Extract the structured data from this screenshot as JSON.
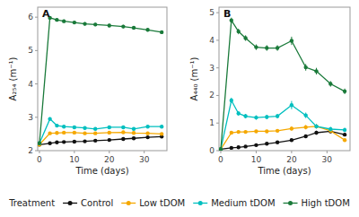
{
  "chart_data": [
    {
      "type": "line",
      "title": "A",
      "x_label": "Time (days)",
      "y_label": "A₂₅₄ (m⁻¹)",
      "legend_title": "Treatment",
      "legend": "bottom",
      "grid": false,
      "marker": "circle",
      "line_style": "solid",
      "xlim": [
        -0.5,
        36.5
      ],
      "xticks": [
        0,
        10,
        20,
        30
      ],
      "ylim": [
        2.0,
        6.3
      ],
      "yticks": [
        2,
        3,
        4,
        5,
        6
      ],
      "x": [
        0,
        3,
        5,
        7,
        10,
        13,
        16,
        20,
        24,
        27,
        31,
        35
      ],
      "series": [
        {
          "name": "Control",
          "color": "#111111",
          "values": [
            2.18,
            2.22,
            2.25,
            2.26,
            2.27,
            2.28,
            2.3,
            2.32,
            2.35,
            2.37,
            2.4,
            2.42
          ],
          "errors": [
            0.0,
            0.02,
            0.02,
            0.02,
            0.02,
            0.02,
            0.02,
            0.02,
            0.02,
            0.02,
            0.02,
            0.02
          ]
        },
        {
          "name": "Low tDOM",
          "color": "#f5a800",
          "values": [
            2.18,
            2.52,
            2.53,
            2.54,
            2.54,
            2.52,
            2.52,
            2.54,
            2.55,
            2.53,
            2.52,
            2.5
          ],
          "errors": [
            0.0,
            0.03,
            0.03,
            0.03,
            0.03,
            0.03,
            0.03,
            0.03,
            0.03,
            0.03,
            0.03,
            0.03
          ]
        },
        {
          "name": "Medium tDOM",
          "color": "#00bfbf",
          "values": [
            2.22,
            2.95,
            2.75,
            2.72,
            2.7,
            2.68,
            2.65,
            2.7,
            2.7,
            2.65,
            2.72,
            2.72
          ],
          "errors": [
            0.0,
            0.05,
            0.04,
            0.04,
            0.04,
            0.04,
            0.04,
            0.04,
            0.04,
            0.04,
            0.04,
            0.04
          ]
        },
        {
          "name": "High tDOM",
          "color": "#1a7a3a",
          "values": [
            2.22,
            5.98,
            5.92,
            5.88,
            5.84,
            5.8,
            5.78,
            5.75,
            5.72,
            5.68,
            5.62,
            5.55
          ],
          "errors": [
            0.0,
            0.05,
            0.05,
            0.05,
            0.05,
            0.05,
            0.05,
            0.05,
            0.05,
            0.05,
            0.05,
            0.05
          ]
        }
      ]
    },
    {
      "type": "line",
      "title": "B",
      "x_label": "Time (days)",
      "y_label": "A₄₄₀ (m⁻¹)",
      "grid": false,
      "marker": "circle",
      "line_style": "solid",
      "xlim": [
        -0.5,
        36.5
      ],
      "xticks": [
        0,
        10,
        20,
        30
      ],
      "ylim": [
        0,
        5.2
      ],
      "yticks": [
        0,
        1,
        2,
        3,
        4,
        5
      ],
      "x": [
        0,
        3,
        5,
        7,
        10,
        13,
        16,
        20,
        24,
        27,
        31,
        35
      ],
      "series": [
        {
          "name": "Control",
          "color": "#111111",
          "values": [
            0.05,
            0.1,
            0.12,
            0.15,
            0.2,
            0.25,
            0.3,
            0.38,
            0.52,
            0.65,
            0.7,
            0.58
          ],
          "errors": [
            0.01,
            0.02,
            0.02,
            0.02,
            0.02,
            0.02,
            0.02,
            0.04,
            0.06,
            0.07,
            0.07,
            0.06
          ]
        },
        {
          "name": "Low tDOM",
          "color": "#f5a800",
          "values": [
            0.05,
            0.65,
            0.68,
            0.68,
            0.7,
            0.7,
            0.72,
            0.8,
            0.85,
            0.88,
            0.72,
            0.38
          ],
          "errors": [
            0.01,
            0.05,
            0.05,
            0.05,
            0.05,
            0.05,
            0.05,
            0.08,
            0.08,
            0.08,
            0.08,
            0.05
          ]
        },
        {
          "name": "Medium tDOM",
          "color": "#00bfbf",
          "values": [
            0.05,
            1.82,
            1.35,
            1.25,
            1.2,
            1.22,
            1.25,
            1.65,
            1.28,
            0.88,
            0.78,
            0.75
          ],
          "errors": [
            0.01,
            0.1,
            0.08,
            0.08,
            0.08,
            0.08,
            0.08,
            0.15,
            0.1,
            0.08,
            0.08,
            0.08
          ]
        },
        {
          "name": "High tDOM",
          "color": "#1a7a3a",
          "values": [
            0.05,
            4.72,
            4.32,
            4.08,
            3.75,
            3.72,
            3.72,
            3.98,
            3.02,
            2.88,
            2.42,
            2.15
          ],
          "errors": [
            0.01,
            0.1,
            0.1,
            0.1,
            0.1,
            0.1,
            0.1,
            0.15,
            0.12,
            0.12,
            0.1,
            0.1
          ]
        }
      ]
    }
  ]
}
